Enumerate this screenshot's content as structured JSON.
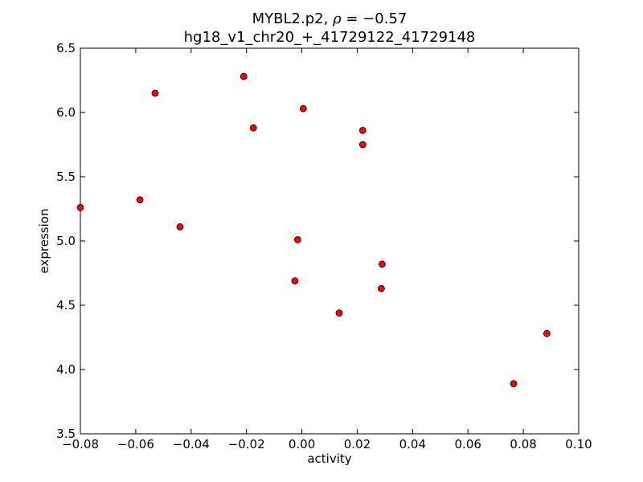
{
  "chart_data": {
    "type": "scatter",
    "title_line1_prefix": "MYBL2.p2, ",
    "title_rho_symbol": "ρ",
    "title_rho_value": " = −0.57",
    "title_line2": "hg18_v1_chr20_+_41729122_41729148",
    "xlabel": "activity",
    "ylabel": "expression",
    "xlim": [
      -0.08,
      0.1
    ],
    "ylim": [
      3.5,
      6.5
    ],
    "xticks": [
      -0.08,
      -0.06,
      -0.04,
      -0.02,
      0.0,
      0.02,
      0.04,
      0.06,
      0.08,
      0.1
    ],
    "xtick_labels": [
      "−0.08",
      "−0.06",
      "−0.04",
      "−0.02",
      "0.00",
      "0.02",
      "0.04",
      "0.06",
      "0.08",
      "0.10"
    ],
    "yticks": [
      3.5,
      4.0,
      4.5,
      5.0,
      5.5,
      6.0,
      6.5
    ],
    "ytick_labels": [
      "3.5",
      "4.0",
      "4.5",
      "5.0",
      "5.5",
      "6.0",
      "6.5"
    ],
    "marker_color": "#ff0000",
    "marker_edge_color": "#000000",
    "points": [
      {
        "x": -0.08,
        "y": 5.26
      },
      {
        "x": -0.0585,
        "y": 5.32
      },
      {
        "x": -0.053,
        "y": 6.15
      },
      {
        "x": -0.044,
        "y": 5.11
      },
      {
        "x": -0.021,
        "y": 6.28
      },
      {
        "x": -0.0175,
        "y": 5.88
      },
      {
        "x": 0.0005,
        "y": 6.03
      },
      {
        "x": -0.0015,
        "y": 5.01
      },
      {
        "x": -0.0025,
        "y": 4.69
      },
      {
        "x": 0.0135,
        "y": 4.44
      },
      {
        "x": 0.022,
        "y": 5.86
      },
      {
        "x": 0.022,
        "y": 5.75
      },
      {
        "x": 0.029,
        "y": 4.82
      },
      {
        "x": 0.0287,
        "y": 4.63
      },
      {
        "x": 0.0765,
        "y": 3.89
      },
      {
        "x": 0.0885,
        "y": 4.28
      }
    ]
  }
}
